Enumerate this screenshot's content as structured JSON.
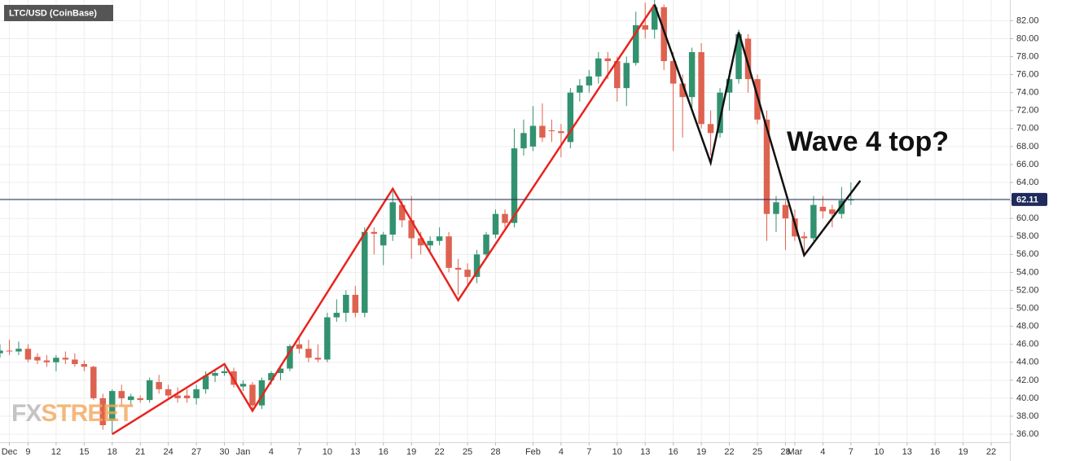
{
  "chart_data": {
    "type": "candlestick",
    "title": "LTC/USD (CoinBase)",
    "annotation": "Wave 4 top?",
    "watermark": [
      "FX",
      "STREET"
    ],
    "up_color": "#32926f",
    "down_color": "#de6250",
    "grid": true,
    "last_price": 62.11,
    "last_price_color": "#1e2b5c",
    "xlim": [
      0,
      108
    ],
    "ylim": [
      35.1,
      84.3
    ],
    "xticks": [
      {
        "value": 1,
        "label": "Dec"
      },
      {
        "value": 3,
        "label": "9"
      },
      {
        "value": 6,
        "label": "12"
      },
      {
        "value": 9,
        "label": "15"
      },
      {
        "value": 12,
        "label": "18"
      },
      {
        "value": 15,
        "label": "21"
      },
      {
        "value": 18,
        "label": "24"
      },
      {
        "value": 21,
        "label": "27"
      },
      {
        "value": 24,
        "label": "30"
      },
      {
        "value": 26,
        "label": "Jan"
      },
      {
        "value": 29,
        "label": "4"
      },
      {
        "value": 32,
        "label": "7"
      },
      {
        "value": 35,
        "label": "10"
      },
      {
        "value": 38,
        "label": "13"
      },
      {
        "value": 41,
        "label": "16"
      },
      {
        "value": 44,
        "label": "19"
      },
      {
        "value": 47,
        "label": "22"
      },
      {
        "value": 50,
        "label": "25"
      },
      {
        "value": 53,
        "label": "28"
      },
      {
        "value": 57,
        "label": "Feb"
      },
      {
        "value": 60,
        "label": "4"
      },
      {
        "value": 63,
        "label": "7"
      },
      {
        "value": 66,
        "label": "10"
      },
      {
        "value": 69,
        "label": "13"
      },
      {
        "value": 72,
        "label": "16"
      },
      {
        "value": 75,
        "label": "19"
      },
      {
        "value": 78,
        "label": "22"
      },
      {
        "value": 81,
        "label": "25"
      },
      {
        "value": 84,
        "label": "28"
      },
      {
        "value": 85,
        "label": "Mar"
      },
      {
        "value": 88,
        "label": "4"
      },
      {
        "value": 91,
        "label": "7"
      },
      {
        "value": 94,
        "label": "10"
      },
      {
        "value": 97,
        "label": "13"
      },
      {
        "value": 100,
        "label": "16"
      },
      {
        "value": 103,
        "label": "19"
      },
      {
        "value": 106,
        "label": "22"
      }
    ],
    "yticks": [
      {
        "value": 36,
        "label": "36.00"
      },
      {
        "value": 38,
        "label": "38.00"
      },
      {
        "value": 40,
        "label": "40.00"
      },
      {
        "value": 42,
        "label": "42.00"
      },
      {
        "value": 44,
        "label": "44.00"
      },
      {
        "value": 46,
        "label": "46.00"
      },
      {
        "value": 48,
        "label": "48.00"
      },
      {
        "value": 50,
        "label": "50.00"
      },
      {
        "value": 52,
        "label": "52.00"
      },
      {
        "value": 54,
        "label": "54.00"
      },
      {
        "value": 56,
        "label": "56.00"
      },
      {
        "value": 58,
        "label": "58.00"
      },
      {
        "value": 60,
        "label": "60.00"
      },
      {
        "value": 62,
        "label": "62.00"
      },
      {
        "value": 64,
        "label": "64.00"
      },
      {
        "value": 66,
        "label": "66.00"
      },
      {
        "value": 68,
        "label": "68.00"
      },
      {
        "value": 70,
        "label": "70.00"
      },
      {
        "value": 72,
        "label": "72.00"
      },
      {
        "value": 74,
        "label": "74.00"
      },
      {
        "value": 76,
        "label": "76.00"
      },
      {
        "value": 78,
        "label": "78.00"
      },
      {
        "value": 80,
        "label": "80.00"
      },
      {
        "value": 82,
        "label": "82.00"
      }
    ],
    "x": [
      0,
      1,
      2,
      3,
      4,
      5,
      6,
      7,
      8,
      9,
      10,
      11,
      12,
      13,
      14,
      15,
      16,
      17,
      18,
      19,
      20,
      21,
      22,
      23,
      24,
      25,
      26,
      27,
      28,
      29,
      30,
      31,
      32,
      33,
      34,
      35,
      36,
      37,
      38,
      39,
      40,
      41,
      42,
      43,
      44,
      45,
      46,
      47,
      48,
      49,
      50,
      51,
      52,
      53,
      54,
      55,
      56,
      57,
      58,
      59,
      60,
      61,
      62,
      63,
      64,
      65,
      66,
      67,
      68,
      69,
      70,
      71,
      72,
      73,
      74,
      75,
      76,
      77,
      78,
      79,
      80,
      81,
      82,
      83,
      84,
      85,
      86,
      87,
      88,
      89,
      90,
      91
    ],
    "open": [
      45.0,
      45.3,
      45.2,
      45.5,
      44.6,
      44.2,
      44.0,
      44.5,
      44.3,
      43.8,
      43.5,
      40.0,
      37.5,
      40.8,
      39.8,
      40.0,
      39.8,
      41.8,
      41.0,
      40.3,
      40.3,
      40.0,
      41.0,
      42.5,
      42.8,
      43.0,
      41.3,
      41.5,
      39.2,
      42.0,
      42.8,
      43.3,
      46.0,
      45.5,
      44.5,
      44.3,
      49.0,
      49.5,
      51.5,
      49.5,
      58.5,
      57.0,
      58.2,
      61.5,
      59.8,
      57.8,
      57.0,
      57.5,
      58.0,
      54.5,
      54.3,
      53.5,
      56.0,
      58.2,
      60.5,
      59.5,
      67.8,
      68.0,
      70.3,
      69.8,
      69.7,
      68.5,
      74.0,
      74.8,
      75.8,
      77.8,
      77.5,
      74.5,
      77.3,
      81.5,
      81.0,
      83.5,
      77.5,
      75.0,
      73.5,
      78.5,
      70.5,
      69.5,
      74.0,
      75.5,
      80.0,
      75.5,
      71.0,
      60.5,
      61.5,
      60.0,
      58.0,
      57.8,
      61.3,
      61.0,
      60.5,
      62.0
    ],
    "high": [
      46.0,
      46.5,
      46.3,
      46.0,
      45.0,
      44.8,
      44.8,
      45.2,
      45.0,
      44.2,
      43.6,
      40.5,
      41.0,
      41.5,
      40.5,
      40.3,
      42.3,
      42.6,
      41.5,
      41.2,
      41.0,
      41.5,
      43.0,
      43.2,
      43.5,
      43.4,
      42.0,
      41.8,
      42.3,
      43.0,
      43.5,
      46.0,
      47.0,
      46.5,
      46.0,
      49.5,
      51.0,
      52.0,
      52.5,
      59.0,
      59.0,
      58.5,
      63.0,
      62.0,
      62.5,
      58.5,
      58.0,
      59.0,
      58.5,
      55.5,
      55.0,
      56.5,
      58.5,
      61.0,
      61.0,
      70.0,
      71.0,
      72.5,
      72.8,
      71.0,
      70.5,
      74.5,
      75.5,
      76.5,
      78.5,
      78.5,
      78.0,
      78.0,
      83.0,
      84.0,
      84.5,
      83.8,
      78.5,
      76.0,
      79.0,
      79.5,
      72.0,
      74.5,
      76.5,
      81.0,
      80.5,
      76.0,
      72.0,
      62.5,
      62.0,
      61.0,
      58.5,
      62.5,
      62.5,
      61.5,
      63.5,
      64.0
    ],
    "low": [
      44.5,
      44.8,
      44.8,
      44.0,
      43.8,
      43.5,
      43.0,
      43.8,
      43.5,
      43.0,
      39.8,
      36.5,
      36.0,
      39.2,
      39.2,
      39.5,
      39.5,
      40.5,
      39.8,
      39.5,
      39.5,
      39.3,
      40.5,
      41.8,
      42.5,
      41.2,
      40.8,
      38.5,
      38.8,
      41.5,
      42.0,
      43.0,
      45.0,
      44.0,
      44.0,
      44.0,
      48.5,
      48.5,
      49.0,
      49.0,
      56.0,
      54.8,
      57.5,
      59.0,
      55.5,
      56.0,
      56.0,
      57.0,
      54.0,
      51.5,
      52.5,
      52.8,
      55.5,
      57.8,
      59.0,
      59.0,
      67.0,
      67.5,
      68.5,
      68.5,
      66.8,
      67.8,
      73.0,
      74.0,
      75.0,
      75.5,
      73.0,
      72.5,
      77.0,
      80.0,
      80.0,
      76.5,
      67.5,
      69.0,
      72.0,
      70.0,
      67.0,
      69.0,
      72.0,
      75.0,
      74.0,
      70.5,
      57.5,
      58.5,
      56.5,
      57.5,
      56.0,
      57.5,
      60.0,
      59.0,
      60.0,
      61.5
    ],
    "close": [
      45.3,
      45.2,
      45.5,
      44.3,
      44.2,
      44.0,
      44.5,
      44.3,
      43.8,
      43.5,
      40.0,
      37.0,
      40.8,
      40.0,
      40.2,
      39.8,
      42.0,
      41.0,
      40.3,
      40.0,
      40.0,
      41.0,
      42.5,
      42.8,
      43.0,
      41.5,
      41.6,
      39.2,
      42.0,
      42.8,
      43.3,
      45.8,
      45.5,
      44.5,
      44.3,
      49.0,
      49.5,
      51.5,
      49.5,
      58.5,
      58.3,
      58.2,
      61.8,
      59.8,
      57.8,
      57.0,
      57.5,
      58.0,
      54.5,
      54.3,
      53.5,
      56.0,
      58.2,
      60.5,
      59.5,
      67.8,
      69.5,
      70.3,
      69.0,
      69.7,
      69.5,
      74.0,
      74.8,
      75.8,
      77.8,
      77.5,
      74.5,
      77.3,
      81.5,
      81.0,
      83.5,
      77.5,
      75.0,
      73.5,
      78.5,
      70.5,
      69.5,
      74.0,
      75.5,
      80.5,
      75.5,
      71.0,
      60.5,
      61.8,
      60.0,
      58.0,
      57.8,
      61.5,
      60.8,
      60.5,
      62.0,
      62.11
    ],
    "drawings": [
      {
        "color": "#e8241e",
        "x": [
          12,
          24,
          27,
          42,
          49,
          70
        ],
        "y": [
          36.0,
          43.8,
          38.6,
          63.3,
          50.9,
          83.8
        ]
      },
      {
        "color": "#111111",
        "x": [
          70,
          76,
          79,
          86,
          92
        ],
        "y": [
          83.8,
          66.2,
          80.7,
          55.9,
          64.2
        ]
      }
    ]
  }
}
